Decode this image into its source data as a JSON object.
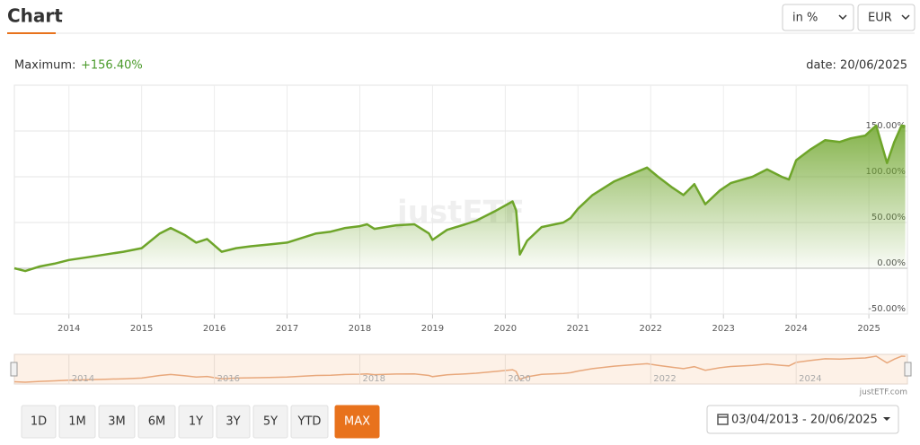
{
  "header": {
    "title": "Chart",
    "unit_select": "in %",
    "currency_select": "EUR"
  },
  "summary": {
    "maximum_label": "Maximum:",
    "maximum_value": "+156.40%",
    "date_label": "date: 20/06/2025"
  },
  "watermark": "justETF",
  "chart_data": {
    "type": "line",
    "xlim": [
      2013.25,
      2025.53
    ],
    "ylim": [
      -50,
      200
    ],
    "xticks": [
      2014,
      2015,
      2016,
      2017,
      2018,
      2019,
      2020,
      2021,
      2022,
      2023,
      2024,
      2025
    ],
    "yticks": [
      {
        "value": -50,
        "label": "-50.00%"
      },
      {
        "value": 0,
        "label": "0.00%"
      },
      {
        "value": 50,
        "label": "50.00%"
      },
      {
        "value": 100,
        "label": "100.00%"
      },
      {
        "value": 150,
        "label": "150.00%"
      }
    ],
    "grid": true,
    "x": [
      2013.25,
      2013.4,
      2013.6,
      2013.8,
      2014.0,
      2014.25,
      2014.5,
      2014.75,
      2015.0,
      2015.25,
      2015.4,
      2015.6,
      2015.75,
      2015.9,
      2016.1,
      2016.3,
      2016.5,
      2016.75,
      2017.0,
      2017.2,
      2017.4,
      2017.6,
      2017.8,
      2018.0,
      2018.1,
      2018.2,
      2018.5,
      2018.75,
      2018.95,
      2019.0,
      2019.2,
      2019.45,
      2019.6,
      2019.85,
      2020.1,
      2020.15,
      2020.2,
      2020.3,
      2020.5,
      2020.8,
      2020.9,
      2021.0,
      2021.2,
      2021.5,
      2021.8,
      2021.95,
      2022.1,
      2022.3,
      2022.45,
      2022.6,
      2022.75,
      2022.95,
      2023.1,
      2023.4,
      2023.6,
      2023.8,
      2023.9,
      2024.0,
      2024.2,
      2024.4,
      2024.6,
      2024.75,
      2024.95,
      2025.1,
      2025.25,
      2025.35,
      2025.45,
      2025.5
    ],
    "series": [
      {
        "color": "#6ea52a",
        "values": [
          0,
          -3,
          2,
          5,
          9,
          12,
          15,
          18,
          22,
          38,
          44,
          36,
          28,
          32,
          18,
          22,
          24,
          26,
          28,
          33,
          38,
          40,
          44,
          46,
          48,
          43,
          47,
          48,
          38,
          31,
          42,
          48,
          52,
          62,
          73,
          63,
          15,
          30,
          45,
          50,
          55,
          65,
          80,
          95,
          105,
          110,
          100,
          88,
          80,
          92,
          70,
          85,
          93,
          100,
          108,
          100,
          97,
          118,
          130,
          140,
          138,
          142,
          145,
          156,
          115,
          138,
          156,
          155
        ]
      }
    ]
  },
  "navigator": {
    "color": "#e8a87c",
    "xticks": [
      2014,
      2016,
      2018,
      2020,
      2022,
      2024
    ],
    "credit": "justETF.com"
  },
  "periods": [
    "1D",
    "1M",
    "3M",
    "6M",
    "1Y",
    "3Y",
    "5Y",
    "YTD",
    "MAX"
  ],
  "active_period": "MAX",
  "date_range": "03/04/2013 - 20/06/2025"
}
